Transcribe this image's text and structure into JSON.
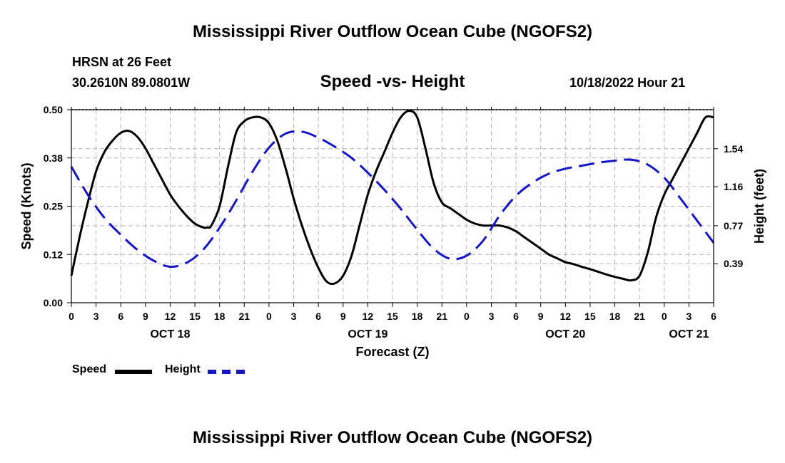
{
  "page": {
    "title": "Mississippi River Outflow Ocean Cube (NGOFS2)",
    "station": "HRSN at 26 Feet",
    "coords": "30.2610N  89.0801W",
    "subtitle": "Speed -vs- Height",
    "datetime": "10/18/2022 Hour 21",
    "footer_title": "Mississippi River Outflow Ocean Cube (NGOFS2)"
  },
  "legend": {
    "speed_label": "Speed",
    "height_label": "Height"
  },
  "colors": {
    "speed": "#000000",
    "height": "#1515c8",
    "grid": "#b4b4b4"
  },
  "chart_data": {
    "type": "line",
    "title": "Speed -vs- Height",
    "xlabel": "Forecast (Z)",
    "ylabel": "Speed (Knots)",
    "y2label": "Height (feet)",
    "xlim": [
      0,
      78
    ],
    "x_ticks": [
      0,
      3,
      6,
      9,
      12,
      15,
      18,
      21,
      24,
      27,
      30,
      33,
      36,
      39,
      42,
      45,
      48,
      51,
      54,
      57,
      60,
      63,
      66,
      69,
      72,
      75,
      78
    ],
    "x_tick_labels": [
      "0",
      "3",
      "6",
      "9",
      "12",
      "15",
      "18",
      "21",
      "0",
      "3",
      "6",
      "9",
      "12",
      "15",
      "18",
      "21",
      "0",
      "3",
      "6",
      "9",
      "12",
      "15",
      "18",
      "21",
      "0",
      "3",
      "6"
    ],
    "day_labels": [
      {
        "x": 12,
        "label": "OCT 18"
      },
      {
        "x": 36,
        "label": "OCT 19"
      },
      {
        "x": 60,
        "label": "OCT 20"
      },
      {
        "x": 75,
        "label": "OCT 21"
      }
    ],
    "ylim": [
      0,
      0.5
    ],
    "y_ticks": [
      0,
      0.125,
      0.25,
      0.375,
      0.5
    ],
    "y_tick_labels": [
      "0.00",
      "0.12",
      "0.25",
      "0.38",
      "0.50"
    ],
    "y2lim": [
      0,
      1.93
    ],
    "y2_ticks": [
      0.39,
      0.77,
      1.16,
      1.54
    ],
    "y2_tick_labels": [
      "0.39",
      "0.77",
      "1.16",
      "1.54"
    ],
    "series": [
      {
        "name": "Speed",
        "axis": "left",
        "style": "solid",
        "x": [
          0,
          1,
          2,
          3,
          4,
          5,
          6,
          7,
          8,
          9,
          10,
          11,
          12,
          13,
          14,
          15,
          16,
          16.5,
          17,
          18,
          19,
          20,
          21,
          22,
          23,
          24,
          25,
          26,
          27,
          28,
          29,
          30,
          31,
          32,
          33,
          34,
          35,
          36,
          37,
          38,
          39,
          40,
          41,
          42,
          43,
          44,
          45,
          46,
          47,
          48,
          49,
          50,
          51,
          52,
          53,
          54,
          55,
          56,
          57,
          58,
          59,
          60,
          61,
          62,
          63,
          64,
          65,
          66,
          67,
          68,
          69,
          70,
          71,
          72,
          73,
          74,
          75,
          76,
          77,
          78
        ],
        "values": [
          0.07,
          0.17,
          0.26,
          0.34,
          0.39,
          0.42,
          0.44,
          0.445,
          0.43,
          0.4,
          0.36,
          0.32,
          0.28,
          0.25,
          0.225,
          0.205,
          0.195,
          0.195,
          0.2,
          0.25,
          0.35,
          0.44,
          0.47,
          0.48,
          0.48,
          0.465,
          0.42,
          0.35,
          0.27,
          0.2,
          0.14,
          0.09,
          0.055,
          0.05,
          0.07,
          0.12,
          0.2,
          0.28,
          0.34,
          0.39,
          0.44,
          0.48,
          0.497,
          0.48,
          0.4,
          0.31,
          0.26,
          0.245,
          0.23,
          0.215,
          0.205,
          0.2,
          0.2,
          0.2,
          0.195,
          0.185,
          0.17,
          0.155,
          0.14,
          0.125,
          0.115,
          0.105,
          0.1,
          0.093,
          0.087,
          0.08,
          0.073,
          0.067,
          0.062,
          0.058,
          0.07,
          0.13,
          0.22,
          0.28,
          0.32,
          0.36,
          0.4,
          0.44,
          0.48,
          0.48
        ]
      },
      {
        "name": "Height",
        "axis": "right",
        "style": "dashed",
        "x": [
          0,
          2,
          4,
          6,
          8,
          10,
          12,
          14,
          16,
          18,
          20,
          22,
          24,
          26,
          28,
          30,
          32,
          34,
          36,
          38,
          40,
          42,
          44,
          46,
          48,
          50,
          52,
          54,
          56,
          58,
          60,
          62,
          64,
          66,
          68,
          70,
          72,
          74,
          76,
          78
        ],
        "values": [
          1.36,
          1.08,
          0.85,
          0.68,
          0.53,
          0.42,
          0.36,
          0.4,
          0.53,
          0.75,
          1.02,
          1.31,
          1.55,
          1.69,
          1.71,
          1.65,
          1.56,
          1.45,
          1.3,
          1.13,
          0.94,
          0.73,
          0.54,
          0.44,
          0.47,
          0.62,
          0.87,
          1.07,
          1.2,
          1.29,
          1.34,
          1.37,
          1.4,
          1.42,
          1.43,
          1.38,
          1.25,
          1.04,
          0.82,
          0.6
        ]
      }
    ]
  }
}
